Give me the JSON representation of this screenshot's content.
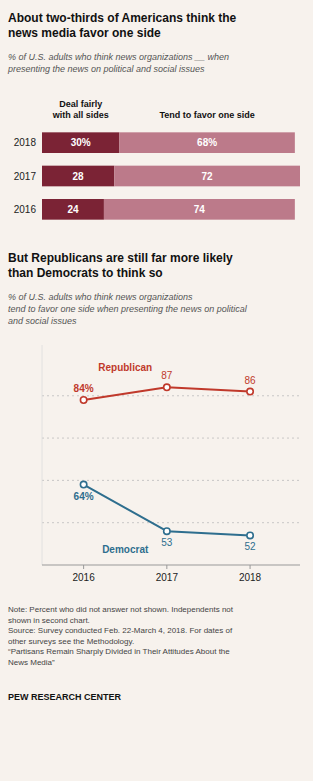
{
  "chart_data": [
    {
      "type": "bar",
      "orientation": "horizontal",
      "stacked": true,
      "title": "About two-thirds of Americans think the\nnews media favor one side",
      "subtitle": "% of U.S. adults who think news organizations __ when\npresenting the news on political and social issues",
      "categories": [
        "2018",
        "2017",
        "2016"
      ],
      "series": [
        {
          "name": "Deal fairly\nwith all sides",
          "color": "#7B2335",
          "values": [
            30,
            28,
            24
          ],
          "value_labels": [
            "30%",
            "28",
            "24"
          ]
        },
        {
          "name": "Tend to favor one side",
          "color": "#BC7A8A",
          "values": [
            68,
            72,
            74
          ],
          "value_labels": [
            "68%",
            "72",
            "74"
          ]
        }
      ],
      "xlim": [
        0,
        100
      ],
      "tick_labels": false,
      "data_labels": true,
      "grid": false
    },
    {
      "type": "line",
      "title": "But Republicans are still far more likely\nthan Democrats to think so",
      "subtitle": "% of U.S. adults who think news organizations \ntend to favor one side when presenting the news on political\nand social issues",
      "x": [
        2016,
        2017,
        2018
      ],
      "series": [
        {
          "name": "Republican",
          "color": "#C0392B",
          "marker": "circle",
          "values": [
            84,
            87,
            86
          ],
          "value_labels": [
            "84%",
            "87",
            "86"
          ]
        },
        {
          "name": "Democrat",
          "color": "#2E6E8E",
          "marker": "circle",
          "values": [
            64,
            53,
            52
          ],
          "value_labels": [
            "64%",
            "53",
            "52"
          ]
        }
      ],
      "xlim": [
        2015.5,
        2018.6
      ],
      "xticks": [
        2016,
        2017,
        2018
      ],
      "ylim": [
        45,
        97
      ],
      "yticks": [
        55,
        65,
        75,
        85
      ],
      "grid": true,
      "tick_labels": "x",
      "data_labels": true,
      "annotations": [
        "Note: Percent who did not answer not shown. Independents not\nshown in second chart.\nSource: Survey conducted Feb. 22-March 4, 2018. For dates of\nother surveys see the Methodology.\n“Partisans Remain Sharply Divided in Their Attitudes About the\nNews Media”",
        "PEW RESEARCH CENTER"
      ]
    }
  ]
}
